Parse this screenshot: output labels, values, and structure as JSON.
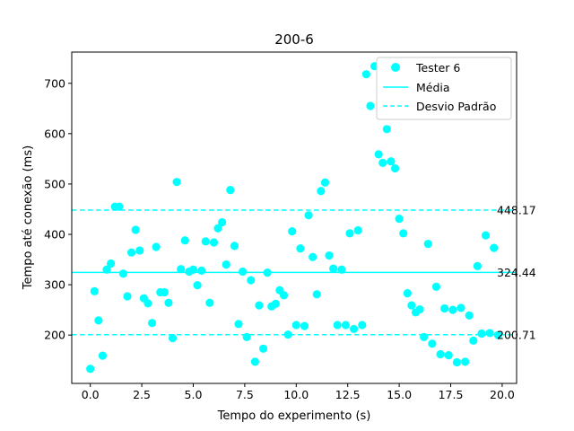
{
  "chart_data": {
    "type": "scatter",
    "title": "200-6",
    "xlabel": "Tempo do experimento (s)",
    "ylabel": "Tempo até conexão (ms)",
    "xlim": [
      -0.9,
      20.7
    ],
    "ylim": [
      104,
      762
    ],
    "xticks": [
      0.0,
      2.5,
      5.0,
      7.5,
      10.0,
      12.5,
      15.0,
      17.5,
      20.0
    ],
    "xtick_labels": [
      "0.0",
      "2.5",
      "5.0",
      "7.5",
      "10.0",
      "12.5",
      "15.0",
      "17.5",
      "20.0"
    ],
    "yticks": [
      200,
      300,
      400,
      500,
      600,
      700
    ],
    "ytick_labels": [
      "200",
      "300",
      "400",
      "500",
      "600",
      "700"
    ],
    "grid": false,
    "legend_position": "top-right",
    "colors": {
      "series": "#00ffff",
      "mean": "#00ffff",
      "std": "#00ffff",
      "axis": "#000000"
    },
    "series": [
      {
        "name": "Tester 6",
        "x": [
          0.0,
          0.2,
          0.4,
          0.6,
          0.8,
          1.0,
          1.2,
          1.4,
          1.6,
          1.8,
          2.0,
          2.2,
          2.4,
          2.6,
          2.8,
          3.0,
          3.2,
          3.4,
          3.6,
          3.8,
          4.0,
          4.2,
          4.4,
          4.6,
          4.8,
          5.0,
          5.2,
          5.4,
          5.6,
          5.8,
          6.0,
          6.2,
          6.4,
          6.6,
          6.8,
          7.0,
          7.2,
          7.4,
          7.6,
          7.8,
          8.0,
          8.2,
          8.4,
          8.6,
          8.8,
          9.0,
          9.2,
          9.4,
          9.6,
          9.8,
          10.0,
          10.2,
          10.4,
          10.6,
          10.8,
          11.0,
          11.2,
          11.4,
          11.6,
          11.8,
          12.0,
          12.2,
          12.4,
          12.6,
          12.8,
          13.0,
          13.2,
          13.4,
          13.6,
          13.8,
          14.0,
          14.2,
          14.4,
          14.6,
          14.8,
          15.0,
          15.2,
          15.4,
          15.6,
          15.8,
          16.0,
          16.2,
          16.4,
          16.6,
          16.8,
          17.0,
          17.2,
          17.4,
          17.6,
          17.8,
          18.0,
          18.2,
          18.4,
          18.6,
          18.8,
          19.0,
          19.2,
          19.4,
          19.6,
          19.8
        ],
        "y": [
          133,
          287,
          229,
          159,
          330,
          342,
          455,
          455,
          322,
          277,
          364,
          409,
          368,
          273,
          263,
          224,
          375,
          285,
          285,
          264,
          194,
          504,
          331,
          388,
          326,
          330,
          299,
          328,
          386,
          264,
          384,
          412,
          424,
          340,
          488,
          377,
          222,
          326,
          196,
          309,
          147,
          259,
          173,
          324,
          257,
          262,
          289,
          279,
          201,
          406,
          220,
          372,
          218,
          438,
          355,
          281,
          486,
          503,
          358,
          332,
          220,
          330,
          220,
          402,
          212,
          408,
          220,
          718,
          655,
          734,
          559,
          542,
          609,
          545,
          531,
          431,
          402,
          283,
          259,
          245,
          251,
          196,
          381,
          183,
          296,
          162,
          253,
          160,
          250,
          146,
          254,
          147,
          239,
          189,
          337,
          203,
          398,
          204,
          373,
          200
        ]
      }
    ],
    "lines": [
      {
        "name": "Média",
        "style": "solid",
        "y": 324.44,
        "label": "324.44"
      },
      {
        "name": "Desvio Padrão",
        "style": "dashed",
        "y": 448.17,
        "label": "448.17"
      },
      {
        "name": "Desvio Padrão",
        "style": "dashed",
        "y": 200.71,
        "label": "200.71"
      }
    ],
    "legend": [
      "Tester 6",
      "Média",
      "Desvio Padrão"
    ]
  }
}
